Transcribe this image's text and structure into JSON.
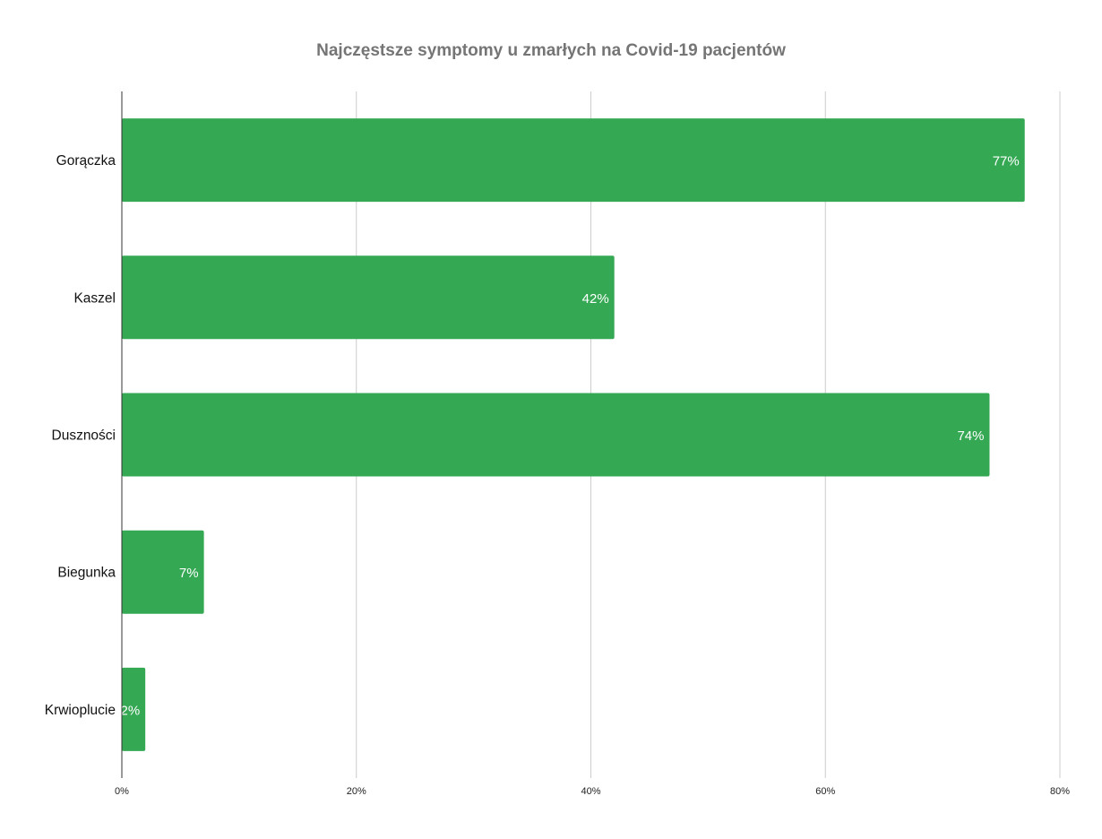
{
  "chart_data": {
    "type": "bar",
    "orientation": "horizontal",
    "title": "Najczęstsze symptomy u zmarłych na Covid-19 pacjentów",
    "categories": [
      "Gorączka",
      "Kaszel",
      "Duszności",
      "Biegunka",
      "Krwioplucie"
    ],
    "values": [
      77,
      42,
      74,
      7,
      2
    ],
    "data_labels": [
      "77%",
      "42%",
      "74%",
      "7%",
      "2%"
    ],
    "x_ticks": [
      "0%",
      "20%",
      "40%",
      "60%",
      "80%"
    ],
    "xlim": [
      0,
      80
    ],
    "unit": "%",
    "grid": "vertical",
    "legend": "none",
    "bar_color": "#34a853"
  }
}
